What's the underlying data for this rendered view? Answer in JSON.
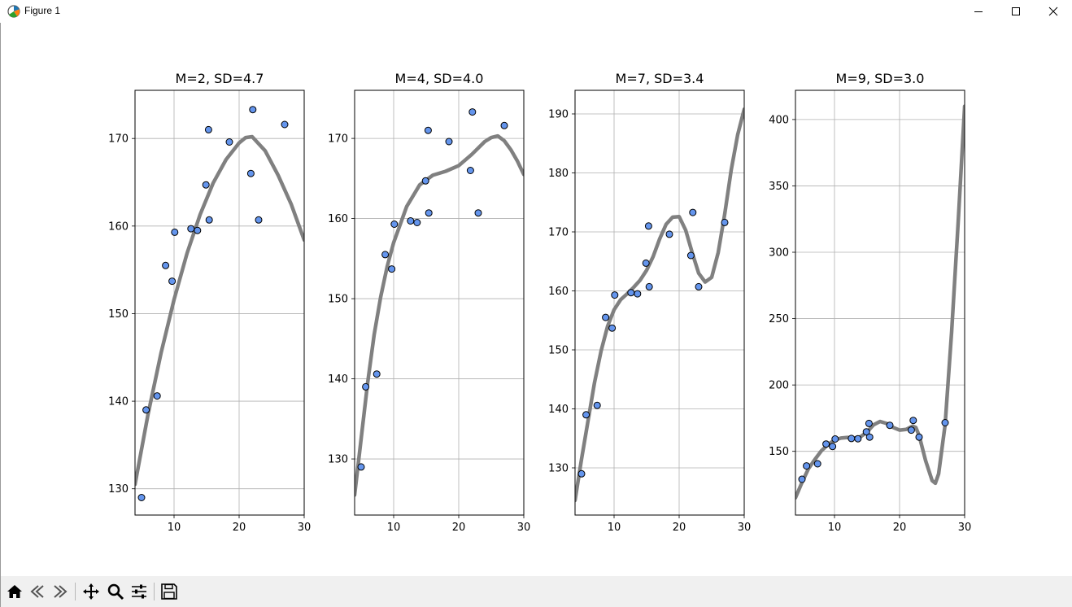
{
  "window": {
    "title": "Figure 1",
    "icons": [
      "matplotlib-app-icon",
      "minimize-icon",
      "maximize-icon",
      "close-icon"
    ]
  },
  "toolbar": {
    "buttons": [
      "home-icon",
      "back-icon",
      "forward-icon",
      "pan-icon",
      "zoom-icon",
      "configure-subplots-icon",
      "save-icon"
    ]
  },
  "colors": {
    "curve": "#808080",
    "points": "#6495ed",
    "point_edge": "#000000",
    "grid": "#b0b0b0"
  },
  "chart_data": [
    {
      "type": "scatter",
      "title": "M=2, SD=4.7",
      "xlim": [
        4,
        30
      ],
      "ylim": [
        127,
        175.5
      ],
      "xticks": [
        10,
        20,
        30
      ],
      "yticks": [
        130,
        140,
        150,
        160,
        170
      ],
      "grid": true,
      "points": [
        [
          5,
          129
        ],
        [
          5.7,
          139
        ],
        [
          7.4,
          140.6
        ],
        [
          8.7,
          155.5
        ],
        [
          9.7,
          153.7
        ],
        [
          10.1,
          159.3
        ],
        [
          12.6,
          159.7
        ],
        [
          13.6,
          159.5
        ],
        [
          14.9,
          164.7
        ],
        [
          15.3,
          171
        ],
        [
          15.4,
          160.7
        ],
        [
          18.5,
          169.6
        ],
        [
          21.8,
          166
        ],
        [
          22.1,
          173.3
        ],
        [
          23,
          160.7
        ],
        [
          27,
          171.6
        ]
      ],
      "curve": [
        [
          4,
          130.5
        ],
        [
          6,
          138.5
        ],
        [
          8,
          145.5
        ],
        [
          10,
          151.6
        ],
        [
          12,
          156.9
        ],
        [
          14,
          161.3
        ],
        [
          16,
          164.9
        ],
        [
          18,
          167.6
        ],
        [
          20,
          169.5
        ],
        [
          21,
          170.1
        ],
        [
          22,
          170.2
        ],
        [
          24,
          168.6
        ],
        [
          26,
          165.8
        ],
        [
          28,
          162.5
        ],
        [
          30,
          158.4
        ]
      ]
    },
    {
      "type": "scatter",
      "title": "M=4, SD=4.0",
      "xlim": [
        4,
        30
      ],
      "ylim": [
        123,
        176
      ],
      "xticks": [
        10,
        20,
        30
      ],
      "yticks": [
        130,
        140,
        150,
        160,
        170
      ],
      "grid": true,
      "points": [
        [
          5,
          129
        ],
        [
          5.7,
          139
        ],
        [
          7.4,
          140.6
        ],
        [
          8.7,
          155.5
        ],
        [
          9.7,
          153.7
        ],
        [
          10.1,
          159.3
        ],
        [
          12.6,
          159.7
        ],
        [
          13.6,
          159.5
        ],
        [
          14.9,
          164.7
        ],
        [
          15.3,
          171
        ],
        [
          15.4,
          160.7
        ],
        [
          18.5,
          169.6
        ],
        [
          21.8,
          166
        ],
        [
          22.1,
          173.3
        ],
        [
          23,
          160.7
        ],
        [
          27,
          171.6
        ]
      ],
      "curve": [
        [
          4,
          125.5
        ],
        [
          5,
          132.5
        ],
        [
          6,
          139.5
        ],
        [
          7,
          145.5
        ],
        [
          8,
          150.2
        ],
        [
          9,
          154
        ],
        [
          10,
          157
        ],
        [
          12,
          161.5
        ],
        [
          14,
          164.2
        ],
        [
          16,
          165.4
        ],
        [
          18,
          165.9
        ],
        [
          20,
          166.6
        ],
        [
          22,
          168
        ],
        [
          24,
          169.6
        ],
        [
          25,
          170.1
        ],
        [
          26,
          170.3
        ],
        [
          27,
          169.7
        ],
        [
          28,
          168.6
        ],
        [
          29,
          167.2
        ],
        [
          30,
          165.5
        ]
      ]
    },
    {
      "type": "scatter",
      "title": "M=7, SD=3.4",
      "xlim": [
        4,
        30
      ],
      "ylim": [
        122,
        194
      ],
      "xticks": [
        10,
        20,
        30
      ],
      "yticks": [
        130,
        140,
        150,
        160,
        170,
        180,
        190
      ],
      "grid": true,
      "points": [
        [
          5,
          129
        ],
        [
          5.7,
          139
        ],
        [
          7.4,
          140.6
        ],
        [
          8.7,
          155.5
        ],
        [
          9.7,
          153.7
        ],
        [
          10.1,
          159.3
        ],
        [
          12.6,
          159.7
        ],
        [
          13.6,
          159.5
        ],
        [
          14.9,
          164.7
        ],
        [
          15.3,
          171
        ],
        [
          15.4,
          160.7
        ],
        [
          18.5,
          169.6
        ],
        [
          21.8,
          166
        ],
        [
          22.1,
          173.3
        ],
        [
          23,
          160.7
        ],
        [
          27,
          171.6
        ]
      ],
      "curve": [
        [
          4,
          124.5
        ],
        [
          5,
          131.5
        ],
        [
          6,
          138
        ],
        [
          7,
          144.5
        ],
        [
          8,
          149.8
        ],
        [
          9,
          154
        ],
        [
          10,
          156.8
        ],
        [
          11,
          158.5
        ],
        [
          12,
          159.5
        ],
        [
          13,
          160.6
        ],
        [
          14,
          161.8
        ],
        [
          15,
          163.5
        ],
        [
          16,
          165.8
        ],
        [
          17,
          168.8
        ],
        [
          18,
          171.3
        ],
        [
          19,
          172.5
        ],
        [
          20,
          172.6
        ],
        [
          21,
          170.3
        ],
        [
          22,
          166.5
        ],
        [
          23,
          163
        ],
        [
          24,
          161.5
        ],
        [
          25,
          162.3
        ],
        [
          26,
          166.5
        ],
        [
          27,
          173
        ],
        [
          28,
          180.5
        ],
        [
          29,
          186.5
        ],
        [
          30,
          190.8
        ]
      ]
    },
    {
      "type": "scatter",
      "title": "M=9, SD=3.0",
      "xlim": [
        4,
        30
      ],
      "ylim": [
        102,
        422
      ],
      "xticks": [
        10,
        20,
        30
      ],
      "yticks": [
        150,
        200,
        250,
        300,
        350,
        400
      ],
      "grid": true,
      "points": [
        [
          5,
          129
        ],
        [
          5.7,
          139
        ],
        [
          7.4,
          140.6
        ],
        [
          8.7,
          155.5
        ],
        [
          9.7,
          153.7
        ],
        [
          10.1,
          159.3
        ],
        [
          12.6,
          159.7
        ],
        [
          13.6,
          159.5
        ],
        [
          14.9,
          164.7
        ],
        [
          15.3,
          171
        ],
        [
          15.4,
          160.7
        ],
        [
          18.5,
          169.6
        ],
        [
          21.8,
          166
        ],
        [
          22.1,
          173.3
        ],
        [
          23,
          160.7
        ],
        [
          27,
          171.6
        ]
      ],
      "curve": [
        [
          4,
          115
        ],
        [
          5,
          126.5
        ],
        [
          6,
          137
        ],
        [
          7,
          144
        ],
        [
          8,
          150.5
        ],
        [
          9,
          155
        ],
        [
          10,
          158.5
        ],
        [
          11,
          160
        ],
        [
          12,
          160.5
        ],
        [
          13,
          160
        ],
        [
          14,
          161
        ],
        [
          15,
          164.5
        ],
        [
          16,
          170
        ],
        [
          17,
          172.5
        ],
        [
          18,
          171
        ],
        [
          19,
          168
        ],
        [
          20,
          166
        ],
        [
          21,
          166.5
        ],
        [
          22,
          169
        ],
        [
          22.5,
          168
        ],
        [
          23,
          162
        ],
        [
          24,
          143
        ],
        [
          25,
          128
        ],
        [
          25.5,
          126
        ],
        [
          26,
          133
        ],
        [
          27,
          170
        ],
        [
          28,
          240
        ],
        [
          29,
          322
        ],
        [
          30,
          410
        ]
      ]
    }
  ]
}
